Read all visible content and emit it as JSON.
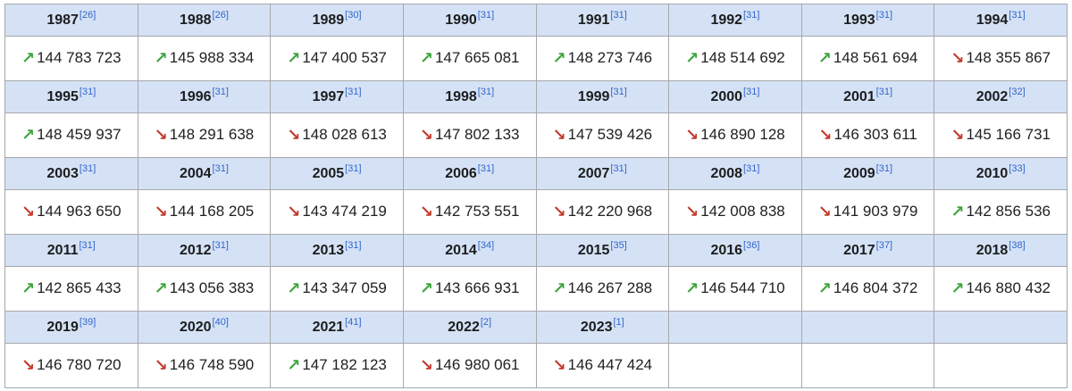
{
  "colors": {
    "header_bg": "#d5e2f5",
    "border": "#a6a8ab",
    "citation_link": "#3366cc",
    "increase_green": "#3ca53c",
    "decrease_red": "#c13a2c",
    "year_text": "#1b1c1e",
    "value_text": "#202122"
  },
  "icons": {
    "increase": "↗",
    "decrease": "↘"
  },
  "table": {
    "columns": 8,
    "row_pairs": [
      {
        "cells": [
          {
            "year": "1987",
            "ref": "[26]",
            "trend": "up",
            "value": "144 783 723"
          },
          {
            "year": "1988",
            "ref": "[26]",
            "trend": "up",
            "value": "145 988 334"
          },
          {
            "year": "1989",
            "ref": "[30]",
            "trend": "up",
            "value": "147 400 537"
          },
          {
            "year": "1990",
            "ref": "[31]",
            "trend": "up",
            "value": "147 665 081"
          },
          {
            "year": "1991",
            "ref": "[31]",
            "trend": "up",
            "value": "148 273 746"
          },
          {
            "year": "1992",
            "ref": "[31]",
            "trend": "up",
            "value": "148 514 692"
          },
          {
            "year": "1993",
            "ref": "[31]",
            "trend": "up",
            "value": "148 561 694"
          },
          {
            "year": "1994",
            "ref": "[31]",
            "trend": "down",
            "value": "148 355 867"
          }
        ]
      },
      {
        "cells": [
          {
            "year": "1995",
            "ref": "[31]",
            "trend": "up",
            "value": "148 459 937"
          },
          {
            "year": "1996",
            "ref": "[31]",
            "trend": "down",
            "value": "148 291 638"
          },
          {
            "year": "1997",
            "ref": "[31]",
            "trend": "down",
            "value": "148 028 613"
          },
          {
            "year": "1998",
            "ref": "[31]",
            "trend": "down",
            "value": "147 802 133"
          },
          {
            "year": "1999",
            "ref": "[31]",
            "trend": "down",
            "value": "147 539 426"
          },
          {
            "year": "2000",
            "ref": "[31]",
            "trend": "down",
            "value": "146 890 128"
          },
          {
            "year": "2001",
            "ref": "[31]",
            "trend": "down",
            "value": "146 303 611"
          },
          {
            "year": "2002",
            "ref": "[32]",
            "trend": "down",
            "value": "145 166 731"
          }
        ]
      },
      {
        "cells": [
          {
            "year": "2003",
            "ref": "[31]",
            "trend": "down",
            "value": "144 963 650"
          },
          {
            "year": "2004",
            "ref": "[31]",
            "trend": "down",
            "value": "144 168 205"
          },
          {
            "year": "2005",
            "ref": "[31]",
            "trend": "down",
            "value": "143 474 219"
          },
          {
            "year": "2006",
            "ref": "[31]",
            "trend": "down",
            "value": "142 753 551"
          },
          {
            "year": "2007",
            "ref": "[31]",
            "trend": "down",
            "value": "142 220 968"
          },
          {
            "year": "2008",
            "ref": "[31]",
            "trend": "down",
            "value": "142 008 838"
          },
          {
            "year": "2009",
            "ref": "[31]",
            "trend": "down",
            "value": "141 903 979"
          },
          {
            "year": "2010",
            "ref": "[33]",
            "trend": "up",
            "value": "142 856 536"
          }
        ]
      },
      {
        "cells": [
          {
            "year": "2011",
            "ref": "[31]",
            "trend": "up",
            "value": "142 865 433"
          },
          {
            "year": "2012",
            "ref": "[31]",
            "trend": "up",
            "value": "143 056 383"
          },
          {
            "year": "2013",
            "ref": "[31]",
            "trend": "up",
            "value": "143 347 059"
          },
          {
            "year": "2014",
            "ref": "[34]",
            "trend": "up",
            "value": "143 666 931"
          },
          {
            "year": "2015",
            "ref": "[35]",
            "trend": "up",
            "value": "146 267 288"
          },
          {
            "year": "2016",
            "ref": "[36]",
            "trend": "up",
            "value": "146 544 710"
          },
          {
            "year": "2017",
            "ref": "[37]",
            "trend": "up",
            "value": "146 804 372"
          },
          {
            "year": "2018",
            "ref": "[38]",
            "trend": "up",
            "value": "146 880 432"
          }
        ]
      },
      {
        "cells": [
          {
            "year": "2019",
            "ref": "[39]",
            "trend": "down",
            "value": "146 780 720"
          },
          {
            "year": "2020",
            "ref": "[40]",
            "trend": "down",
            "value": "146 748 590"
          },
          {
            "year": "2021",
            "ref": "[41]",
            "trend": "up",
            "value": "147 182 123"
          },
          {
            "year": "2022",
            "ref": "[2]",
            "trend": "down",
            "value": "146 980 061"
          },
          {
            "year": "2023",
            "ref": "[1]",
            "trend": "down",
            "value": "146 447 424"
          },
          null,
          null,
          null
        ]
      }
    ]
  }
}
